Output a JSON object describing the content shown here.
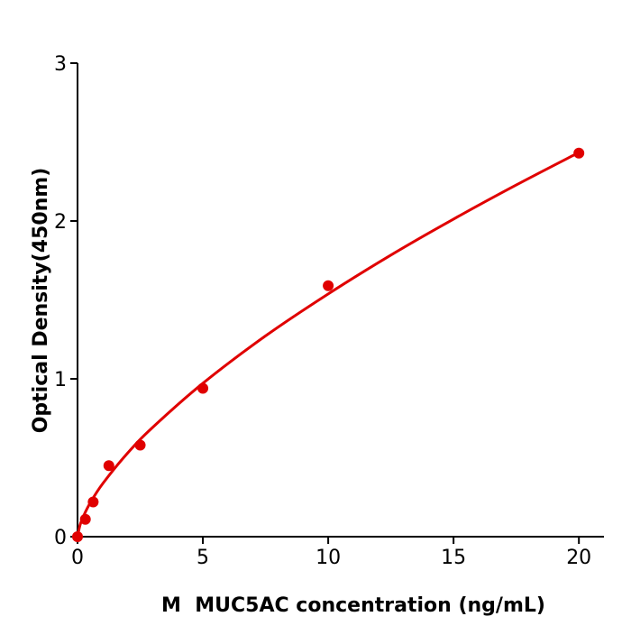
{
  "chart_data": {
    "type": "scatter",
    "title": "",
    "xlabel": "M  MUC5AC concentration (ng/mL)",
    "ylabel": "Optical Density(450nm)",
    "xlim": [
      0,
      21
    ],
    "ylim": [
      0,
      3
    ],
    "xticks": [
      0,
      5,
      10,
      15,
      20
    ],
    "xtick_labels": [
      "0",
      "5",
      "10",
      "15",
      "20"
    ],
    "yticks": [
      0,
      1,
      2,
      3
    ],
    "ytick_labels": [
      "0",
      "1",
      "2",
      "3"
    ],
    "grid": false,
    "color": "#e00000",
    "points": {
      "x": [
        0,
        0.3125,
        0.625,
        1.25,
        2.5,
        5,
        10,
        20
      ],
      "y": [
        0.0,
        0.11,
        0.22,
        0.45,
        0.58,
        0.94,
        1.59,
        2.43
      ]
    },
    "fit_curve": {
      "x": [
        0,
        0.1,
        0.25,
        0.5,
        1,
        2,
        3,
        5,
        7.5,
        10,
        12.5,
        15,
        17.5,
        20
      ],
      "y": [
        0,
        0.073,
        0.134,
        0.212,
        0.335,
        0.53,
        0.693,
        0.972,
        1.272,
        1.538,
        1.784,
        2.012,
        2.228,
        2.434
      ]
    }
  }
}
